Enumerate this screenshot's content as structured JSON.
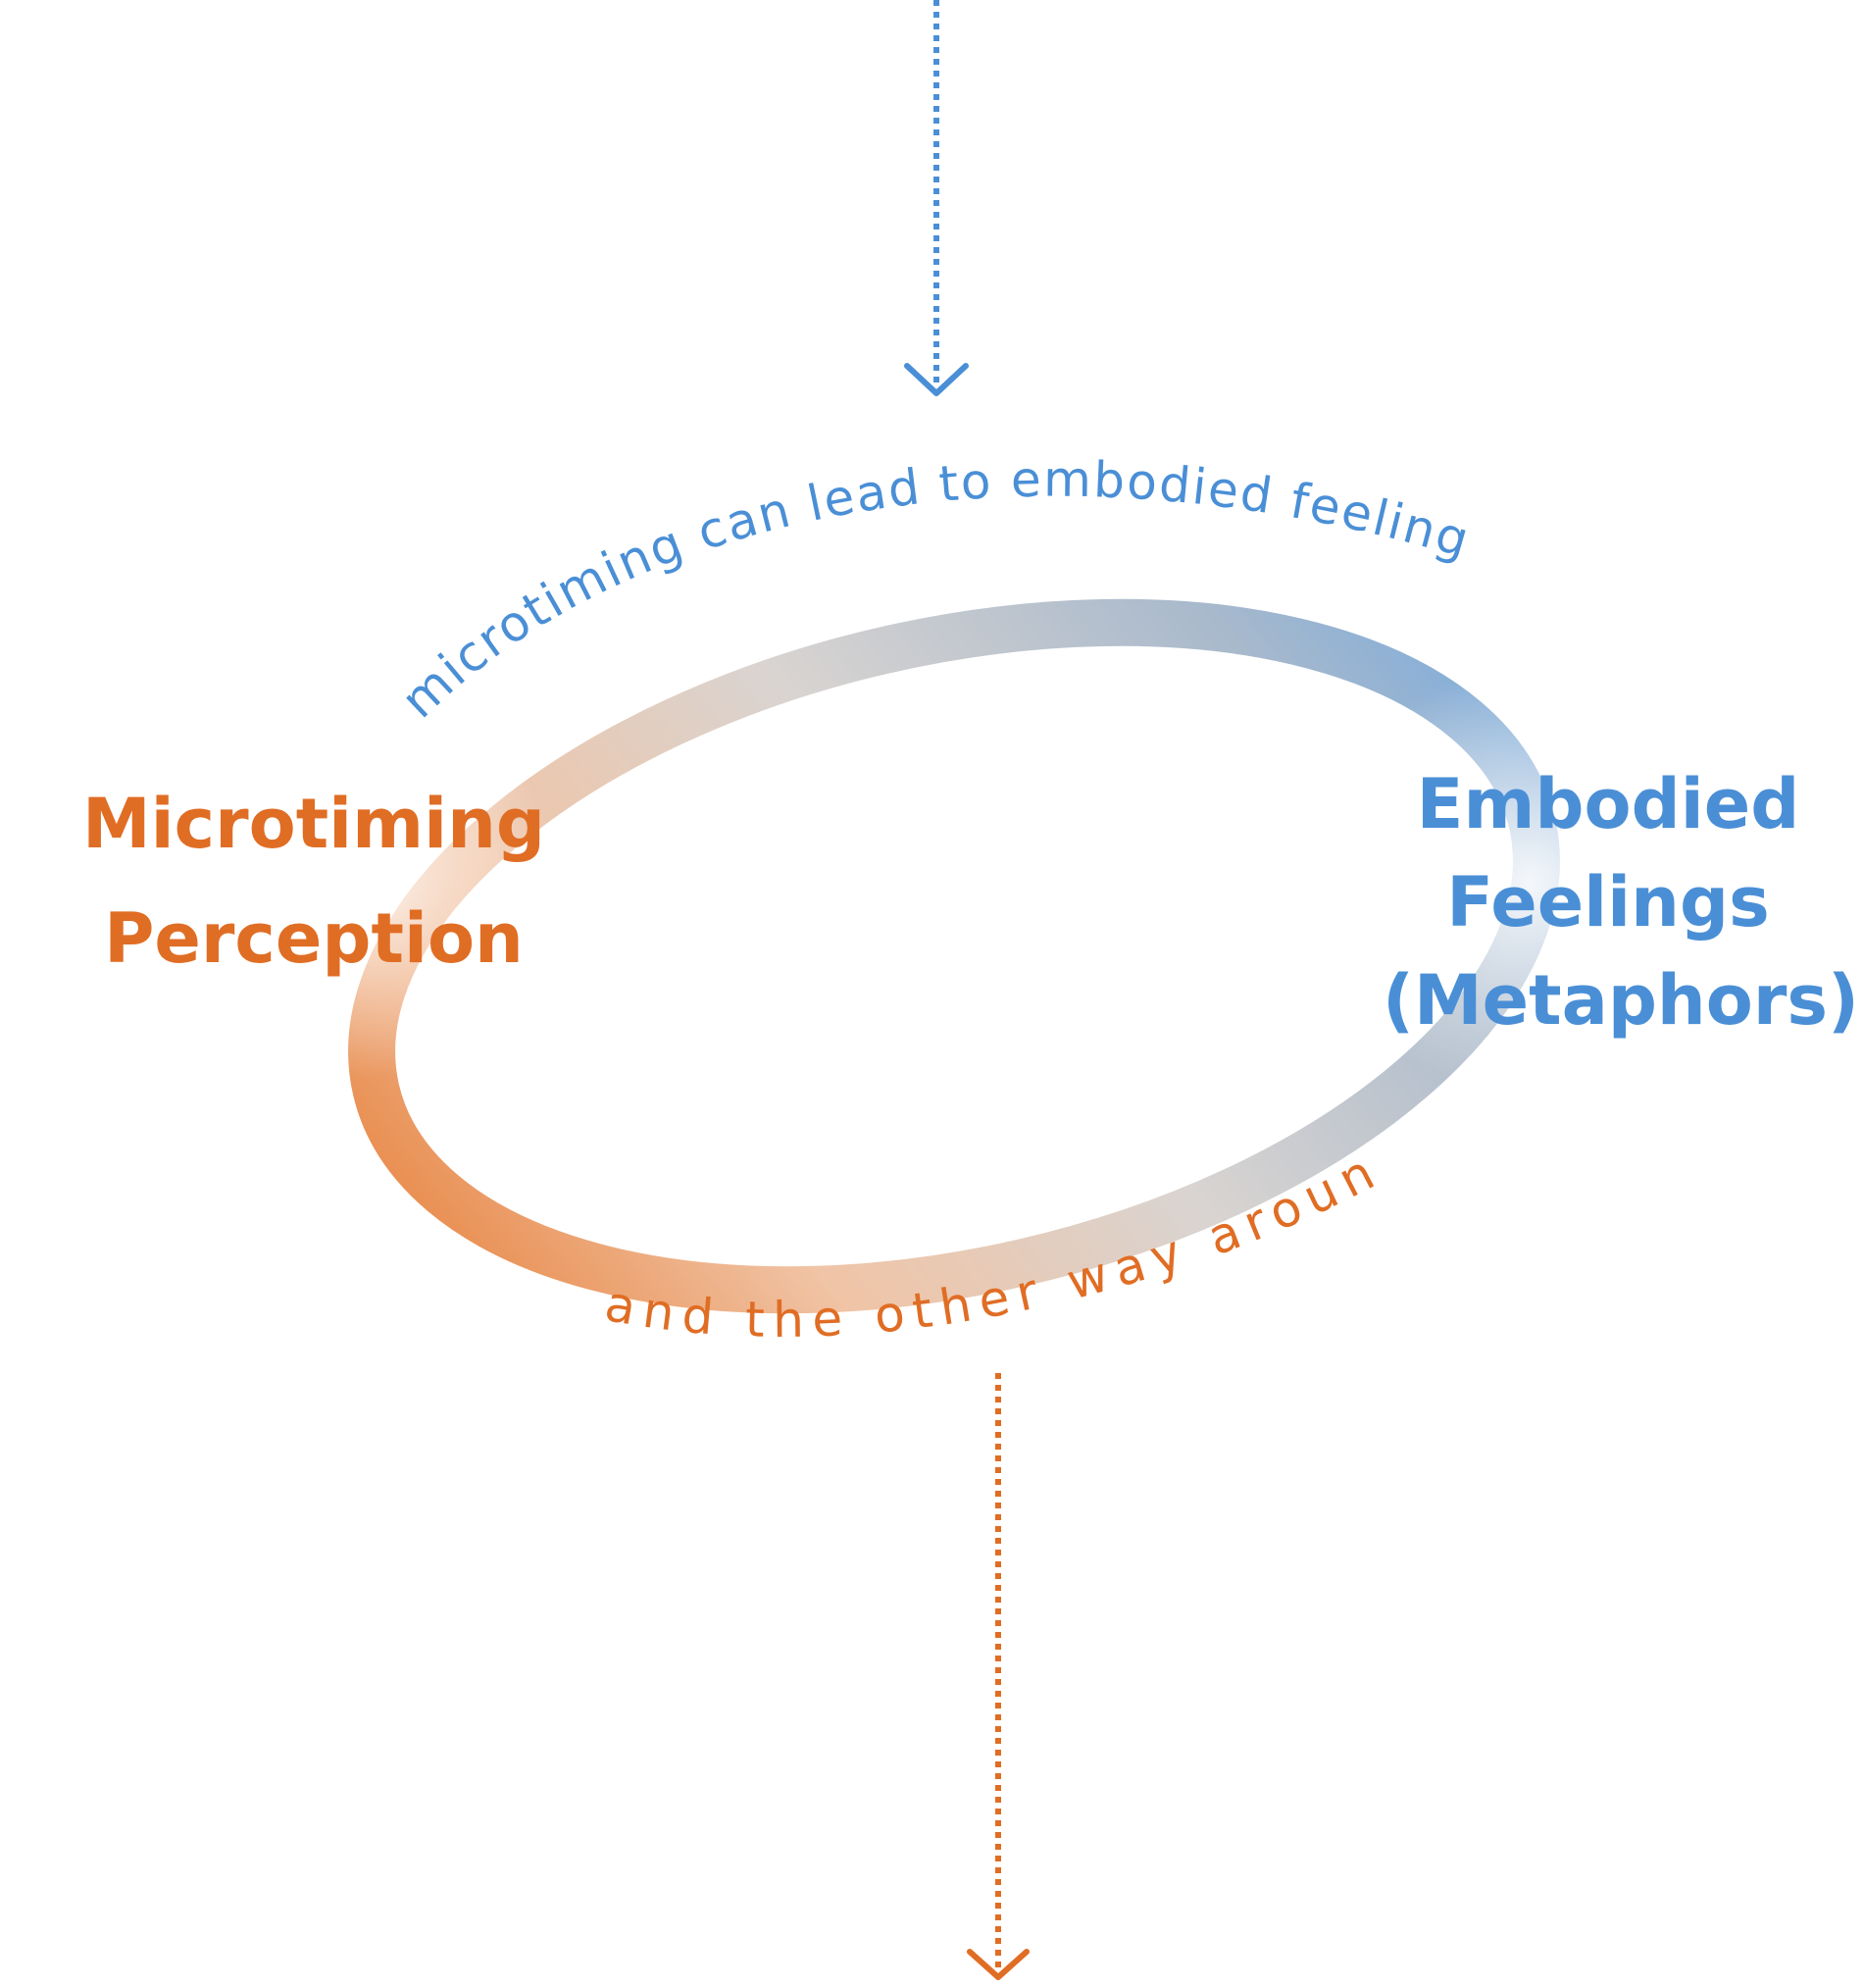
{
  "colors": {
    "orange": "#e06d24",
    "blue": "#4a8fd6",
    "orange_light": "#f0a875",
    "blue_light": "#6ea8e3"
  },
  "nodes": {
    "left": {
      "line1": "Microtiming",
      "line2": "Perception"
    },
    "right": {
      "line1": "Embodied",
      "line2": "Feelings",
      "line3": "(Metaphors)"
    }
  },
  "arcs": {
    "top_text": "microtiming can lead to embodied feelings",
    "bottom_text": "and the other way around?"
  }
}
